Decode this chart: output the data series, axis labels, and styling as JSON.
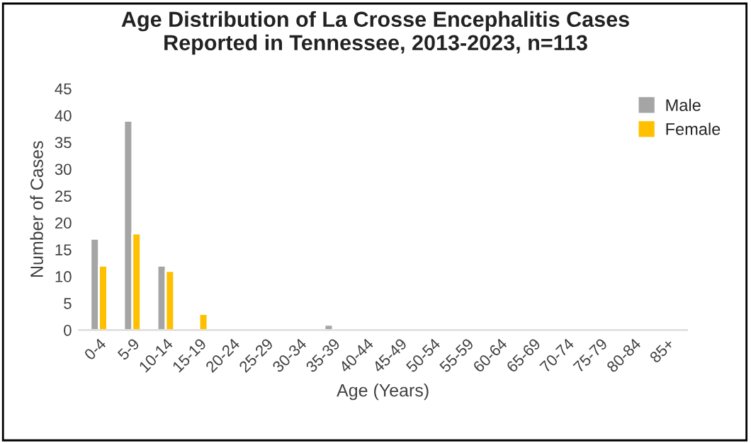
{
  "chart_data": {
    "type": "bar",
    "title": "Age Distribution of La Crosse Encephalitis Cases\nReported in Tennessee, 2013-2023, n=113",
    "xlabel": "Age (Years)",
    "ylabel": "Number of Cases",
    "categories": [
      "0-4",
      "5-9",
      "10-14",
      "15-19",
      "20-24",
      "25-29",
      "30-34",
      "35-39",
      "40-44",
      "45-49",
      "50-54",
      "55-59",
      "60-64",
      "65-69",
      "70-74",
      "75-79",
      "80-84",
      "85+"
    ],
    "series": [
      {
        "name": "Male",
        "color": "#a5a5a5",
        "values": [
          17,
          39,
          12,
          null,
          null,
          null,
          null,
          1,
          null,
          null,
          null,
          null,
          null,
          null,
          null,
          null,
          null,
          null
        ]
      },
      {
        "name": "Female",
        "color": "#ffc000",
        "values": [
          12,
          18,
          11,
          3,
          null,
          null,
          null,
          null,
          null,
          null,
          null,
          null,
          null,
          null,
          null,
          null,
          null,
          null
        ]
      }
    ],
    "ylim": [
      0,
      45
    ],
    "yticks": [
      0,
      5,
      10,
      15,
      20,
      25,
      30,
      35,
      40,
      45
    ],
    "grid": false,
    "legend": "top right"
  }
}
